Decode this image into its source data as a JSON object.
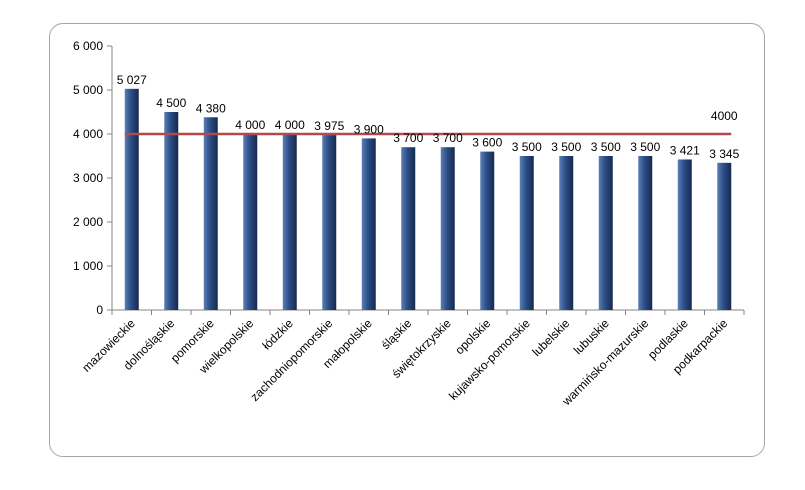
{
  "chart_data": {
    "type": "bar",
    "title": "",
    "xlabel": "",
    "ylabel": "",
    "ylim": [
      0,
      6000
    ],
    "yticks": [
      0,
      1000,
      2000,
      3000,
      4000,
      5000,
      6000
    ],
    "ytick_labels": [
      "0",
      "1 000",
      "2 000",
      "3 000",
      "4 000",
      "5 000",
      "6 000"
    ],
    "categories": [
      "mazowieckie",
      "dolnośląskie",
      "pomorskie",
      "wielkopolskie",
      "łódzkie",
      "zachodniopomorskie",
      "małopolskie",
      "śląskie",
      "świętokrzyskie",
      "opolskie",
      "kujawsko-pomorskie",
      "lubelskie",
      "lubuskie",
      "warmińsko-mazurskie",
      "podlaskie",
      "podkarpackie"
    ],
    "values": [
      5027,
      4500,
      4380,
      4000,
      4000,
      3975,
      3900,
      3700,
      3700,
      3600,
      3500,
      3500,
      3500,
      3500,
      3421,
      3345
    ],
    "value_labels": [
      "5 027",
      "4 500",
      "4 380",
      "4 000",
      "4 000",
      "3 975",
      "3 900",
      "3 700",
      "3 700",
      "3 600",
      "3 500",
      "3 500",
      "3 500",
      "3 500",
      "3 421",
      "3 345"
    ],
    "reference_line": {
      "value": 4000,
      "label": "4000"
    },
    "colors": {
      "bar_top": "#5b7fb8",
      "bar_mid": "#2c4d86",
      "bar_bottom": "#152a4e",
      "reference_line": "#b5484a",
      "axis": "#868686"
    }
  }
}
